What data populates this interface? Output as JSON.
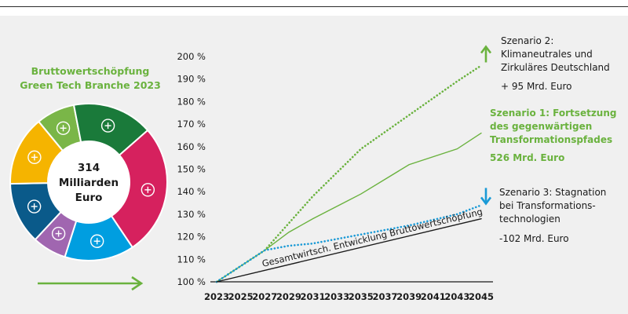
{
  "donut": {
    "title_lines": [
      "Bruttowertschöpfung",
      "Green Tech Branche 2023"
    ],
    "center_lines": [
      "314",
      "Milliarden",
      "Euro"
    ],
    "segments": [
      {
        "icon": "crops-icon",
        "color": "#7ab648",
        "value": 25
      },
      {
        "icon": "wind-turbines-icon",
        "color": "#1a7a3a",
        "value": 52
      },
      {
        "icon": "recycling-icon",
        "color": "#d6215e",
        "value": 85
      },
      {
        "icon": "water-drop-icon",
        "color": "#009ee0",
        "value": 45
      },
      {
        "icon": "hands-globe-icon",
        "color": "#a066b0",
        "value": 22
      },
      {
        "icon": "factory-icon",
        "color": "#0a5a8a",
        "value": 40
      },
      {
        "icon": "electric-car-icon",
        "color": "#f5b400",
        "value": 45
      }
    ]
  },
  "chart_data": {
    "type": "line",
    "x_ticks": [
      "2023",
      "2025",
      "2027",
      "2029",
      "2031",
      "2033",
      "2035",
      "2037",
      "2039",
      "2041",
      "2043",
      "2045"
    ],
    "y_ticks": [
      "100 %",
      "110 %",
      "120 %",
      "130 %",
      "140 %",
      "150 %",
      "160 %",
      "170 %",
      "180 %",
      "190 %",
      "200 %"
    ],
    "xlim": [
      2023,
      2045
    ],
    "ylim": [
      100,
      200
    ],
    "series": [
      {
        "key": "s2",
        "style": "dotted",
        "color": "#6ab23e",
        "x": [
          2023,
          2027,
          2031,
          2035,
          2039,
          2043,
          2045
        ],
        "y": [
          100,
          114,
          138,
          159,
          174,
          189,
          196
        ]
      },
      {
        "key": "s1",
        "style": "solid",
        "color": "#6ab23e",
        "x": [
          2023,
          2027,
          2029,
          2031,
          2035,
          2039,
          2043,
          2045
        ],
        "y": [
          100,
          114,
          122,
          128,
          139,
          152,
          159,
          166
        ]
      },
      {
        "key": "s3",
        "style": "dotted",
        "color": "#1a9ad6",
        "x": [
          2023,
          2027,
          2029,
          2031,
          2035,
          2039,
          2043,
          2045
        ],
        "y": [
          100,
          114,
          116,
          117,
          121,
          125,
          130,
          134
        ]
      },
      {
        "key": "base",
        "style": "solid",
        "color": "#1a1a1a",
        "x": [
          2023,
          2045
        ],
        "y": [
          100,
          128
        ]
      }
    ],
    "baseline_label": "Gesamtwirtsch. Entwicklung Bruttowertschöpfung",
    "arrows": [
      {
        "series": "s2",
        "direction": "up",
        "color": "#6ab23e"
      },
      {
        "series": "s3",
        "direction": "down",
        "color": "#1a9ad6"
      }
    ]
  },
  "scenarios": {
    "s2": {
      "lines": [
        "Szenario 2:",
        "Klimaneutrales und",
        "Zirkuläres Deutschland"
      ],
      "value": "+ 95 Mrd. Euro"
    },
    "s1": {
      "lines": [
        "Szenario 1: Fortsetzung",
        "des gegenwärtigen",
        "Transformationspfades"
      ],
      "value": "526 Mrd. Euro"
    },
    "s3": {
      "lines": [
        "Szenario 3: Stagnation",
        "bei Transformations-",
        "technologien"
      ],
      "value": "-102 Mrd. Euro"
    }
  },
  "colors": {
    "accent_green": "#6ab23e",
    "accent_blue": "#1a9ad6"
  }
}
